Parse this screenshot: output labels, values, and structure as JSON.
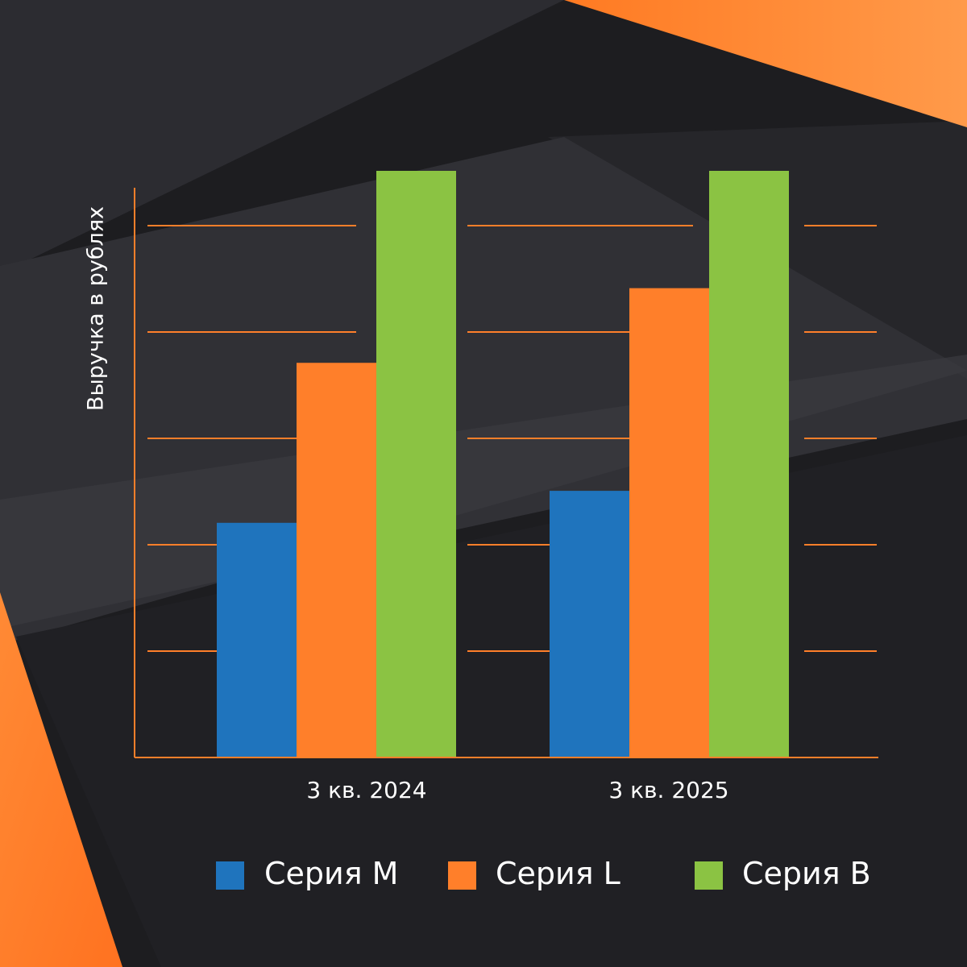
{
  "colors": {
    "background": "#1d1d20",
    "accent": "#ff7f2a",
    "series_m": "#1f74bd",
    "series_l": "#ff7f2a",
    "series_b": "#8bc343"
  },
  "chart_data": {
    "type": "bar",
    "title": "",
    "xlabel": "",
    "ylabel": "Выручка в рублях",
    "categories": [
      "3 кв. 2024",
      "3 кв. 2025"
    ],
    "series": [
      {
        "name": "Серия M",
        "values": [
          2.2,
          2.5
        ]
      },
      {
        "name": "Серия L",
        "values": [
          3.7,
          4.4
        ]
      },
      {
        "name": "Серия B",
        "values": [
          5.5,
          5.5
        ]
      }
    ],
    "ylim": [
      0,
      5.5
    ],
    "grid": true,
    "y_tick_labels_shown": false,
    "legend": "bottom"
  }
}
